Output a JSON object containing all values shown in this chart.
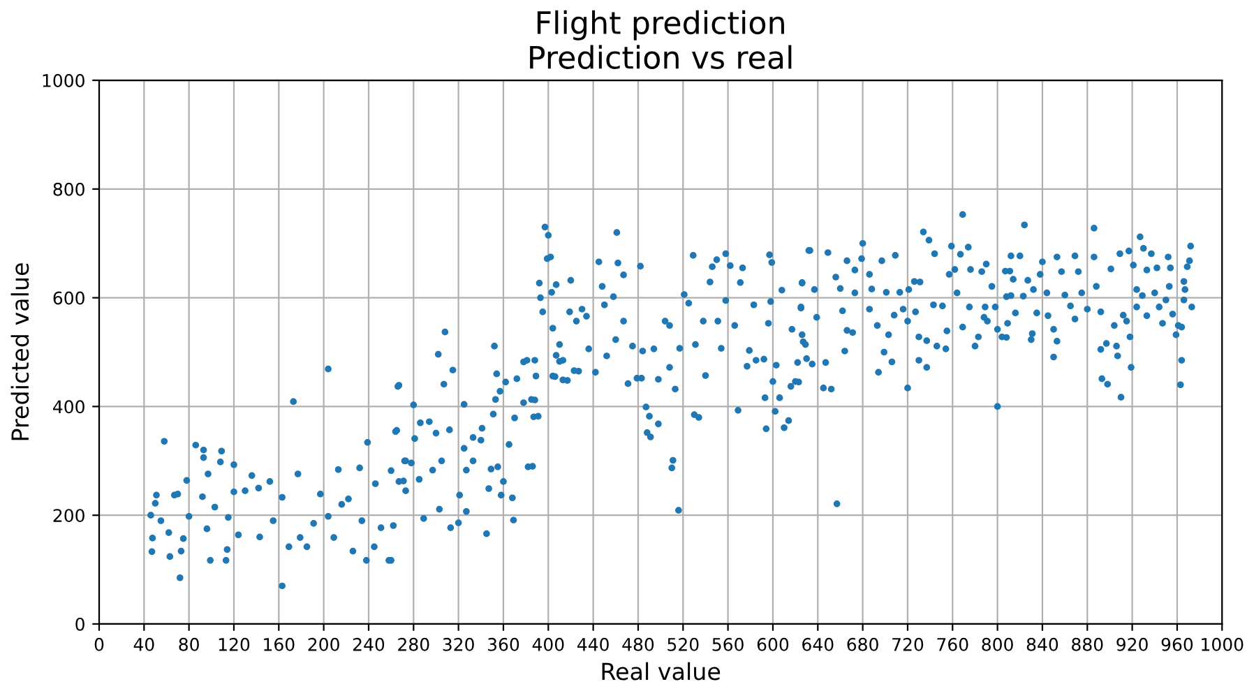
{
  "chart_data": {
    "type": "scatter",
    "title": "Flight prediction\nPrediction vs real",
    "xlabel": "Real value",
    "ylabel": "Predicted value",
    "xlim": [
      0,
      1000
    ],
    "ylim": [
      0,
      1000
    ],
    "xticks": [
      0,
      40,
      80,
      120,
      160,
      200,
      240,
      280,
      320,
      360,
      400,
      440,
      480,
      520,
      560,
      600,
      640,
      680,
      720,
      760,
      800,
      840,
      880,
      920,
      960,
      1000
    ],
    "yticks": [
      0,
      200,
      400,
      600,
      800,
      1000
    ],
    "grid": true,
    "marker": "circle",
    "series": [
      {
        "color": "#1f77b4",
        "x": [
          47,
          47.5,
          46,
          50,
          51,
          58,
          55,
          63,
          62,
          67,
          70,
          72,
          73,
          75,
          78,
          80,
          86,
          93,
          93,
          97,
          92,
          99,
          96,
          103,
          109,
          108,
          120,
          120,
          115,
          114,
          113,
          124,
          130,
          136,
          142,
          143,
          152,
          155,
          163,
          163,
          173,
          177,
          169,
          179,
          185,
          191,
          197,
          204,
          204,
          209,
          213,
          216,
          222,
          226,
          232,
          234,
          239,
          238,
          246,
          245,
          251,
          258,
          260,
          265,
          267,
          273,
          271,
          266,
          264,
          262,
          260,
          280,
          286,
          294,
          300,
          281,
          272,
          278,
          267,
          273,
          285,
          289,
          308,
          302,
          315,
          307,
          312,
          305,
          297,
          303,
          313,
          320,
          325,
          325,
          327,
          333,
          333,
          321,
          327,
          345,
          341,
          340,
          347,
          349,
          355,
          360,
          365,
          358,
          369,
          368,
          351,
          353,
          352,
          354,
          357,
          362,
          370,
          372,
          378,
          381,
          382,
          385,
          387,
          378,
          404,
          407,
          413,
          423,
          410,
          397,
          400,
          399,
          402,
          392,
          393,
          395,
          403,
          407,
          388,
          389,
          388,
          391,
          386,
          404,
          410,
          413,
          417,
          406,
          420,
          419,
          425,
          430,
          427,
          434,
          436,
          442,
          445,
          448,
          450,
          461,
          462,
          467,
          458,
          452,
          460,
          467,
          471,
          475,
          482,
          484,
          479,
          483,
          487,
          490,
          488,
          491,
          498,
          494,
          498,
          504,
          508,
          508,
          513,
          511,
          510,
          516,
          517,
          521,
          525,
          529,
          531,
          530,
          534,
          538,
          540,
          544,
          546,
          551,
          554,
          550,
          558,
          558,
          562,
          566,
          569,
          571,
          573,
          577,
          579,
          583,
          585,
          592,
          593,
          594,
          597,
          599,
          598,
          596,
          600,
          603,
          602,
          608,
          606,
          610,
          614,
          616,
          620,
          617,
          626,
          629,
          632,
          625,
          633,
          626,
          637,
          625,
          639,
          626,
          627,
          622,
          623,
          630,
          635,
          645,
          652,
          647,
          657,
          649,
          656,
          660,
          662,
          664,
          666,
          666,
          671,
          673,
          673,
          680,
          679,
          686,
          686,
          688,
          693,
          694,
          697,
          699,
          701,
          703,
          706,
          709,
          708,
          713,
          716,
          720,
          721,
          720,
          726,
          727,
          731,
          734,
          739,
          730,
          737,
          730,
          737,
          744,
          743,
          746,
          754,
          751,
          755,
          759,
          757,
          762,
          764,
          769,
          767,
          774,
          769,
          776,
          775,
          780,
          783,
          786,
          790,
          789,
          788,
          791,
          795,
          798,
          800,
          800,
          804,
          808,
          807,
          812,
          814,
          811,
          812,
          809,
          808,
          816,
          824,
          820,
          827,
          823,
          831,
          830,
          835,
          832,
          840,
          838,
          844,
          845,
          850,
          850,
          853,
          853,
          857,
          860,
          865,
          869,
          869,
          872,
          875,
          880,
          886,
          886,
          888,
          892,
          892,
          893,
          898,
          897,
          901,
          904,
          906,
          907,
          910,
          909,
          912,
          915,
          917,
          918,
          919,
          921,
          924,
          924,
          927,
          930,
          929,
          933,
          933,
          937,
          940,
          942,
          944,
          947,
          950,
          952,
          954,
          956,
          953,
          961,
          964,
          959,
          963,
          964,
          966,
          967,
          966,
          969,
          971,
          972,
          973
        ],
        "values": [
          133,
          158,
          200,
          222,
          237,
          336,
          190,
          124,
          168,
          237,
          239,
          85,
          134,
          157,
          264,
          198,
          329,
          320,
          306,
          276,
          234,
          117,
          175,
          215,
          318,
          298,
          293,
          243,
          196,
          137,
          117,
          164,
          245,
          273,
          250,
          160,
          262,
          190,
          233,
          70,
          409,
          276,
          142,
          159,
          142,
          185,
          239,
          469,
          198,
          159,
          284,
          220,
          230,
          134,
          287,
          190,
          334,
          117,
          258,
          142,
          177,
          117,
          282,
          356,
          439,
          300,
          263,
          437,
          354,
          181,
          117,
          403,
          370,
          372,
          351,
          341,
          300,
          296,
          262,
          245,
          266,
          194,
          537,
          496,
          467,
          441,
          357,
          300,
          283,
          211,
          177,
          186,
          404,
          323,
          283,
          343,
          300,
          237,
          207,
          166,
          360,
          338,
          249,
          285,
          289,
          262,
          330,
          237,
          191,
          232,
          386,
          413,
          511,
          460,
          428,
          445,
          379,
          451,
          482,
          485,
          289,
          413,
          381,
          407,
          456,
          494,
          449,
          466,
          483,
          730,
          715,
          672,
          675,
          627,
          600,
          574,
          610,
          624,
          485,
          456,
          412,
          382,
          290,
          544,
          514,
          485,
          448,
          455,
          632,
          574,
          557,
          579,
          465,
          566,
          506,
          463,
          666,
          621,
          587,
          720,
          664,
          642,
          602,
          493,
          523,
          557,
          442,
          511,
          658,
          502,
          452,
          452,
          399,
          382,
          352,
          344,
          368,
          506,
          450,
          557,
          549,
          472,
          432,
          301,
          287,
          209,
          507,
          606,
          590,
          678,
          514,
          385,
          380,
          557,
          457,
          629,
          657,
          557,
          507,
          670,
          681,
          595,
          659,
          549,
          393,
          628,
          655,
          474,
          503,
          587,
          485,
          487,
          416,
          359,
          679,
          665,
          593,
          553,
          446,
          476,
          391,
          614,
          416,
          361,
          374,
          437,
          446,
          542,
          627,
          514,
          687,
          581,
          687,
          628,
          615,
          583,
          564,
          532,
          519,
          481,
          445,
          488,
          478,
          434,
          432,
          481,
          221,
          683,
          638,
          617,
          576,
          502,
          540,
          668,
          536,
          651,
          609,
          700,
          672,
          643,
          579,
          616,
          549,
          463,
          668,
          500,
          610,
          532,
          482,
          678,
          568,
          610,
          579,
          434,
          615,
          557,
          630,
          574,
          629,
          721,
          706,
          528,
          521,
          485,
          472,
          681,
          587,
          511,
          506,
          585,
          539,
          695,
          643,
          652,
          609,
          753,
          680,
          693,
          546,
          652,
          583,
          511,
          528,
          648,
          662,
          583,
          564,
          557,
          621,
          583,
          400,
          542,
          528,
          602,
          649,
          677,
          634,
          649,
          604,
          553,
          527,
          572,
          734,
          677,
          632,
          603,
          534,
          523,
          572,
          615,
          666,
          643,
          609,
          567,
          542,
          491,
          520,
          675,
          648,
          605,
          585,
          561,
          677,
          648,
          609,
          579,
          728,
          675,
          621,
          574,
          505,
          451,
          441,
          516,
          653,
          549,
          511,
          493,
          417,
          681,
          568,
          557,
          686,
          528,
          472,
          660,
          583,
          615,
          712,
          691,
          604,
          567,
          651,
          681,
          609,
          655,
          583,
          553,
          596,
          675,
          655,
          570,
          621,
          549,
          546,
          532,
          440,
          485,
          596,
          615,
          630,
          657,
          668,
          695,
          583
        ]
      }
    ]
  }
}
